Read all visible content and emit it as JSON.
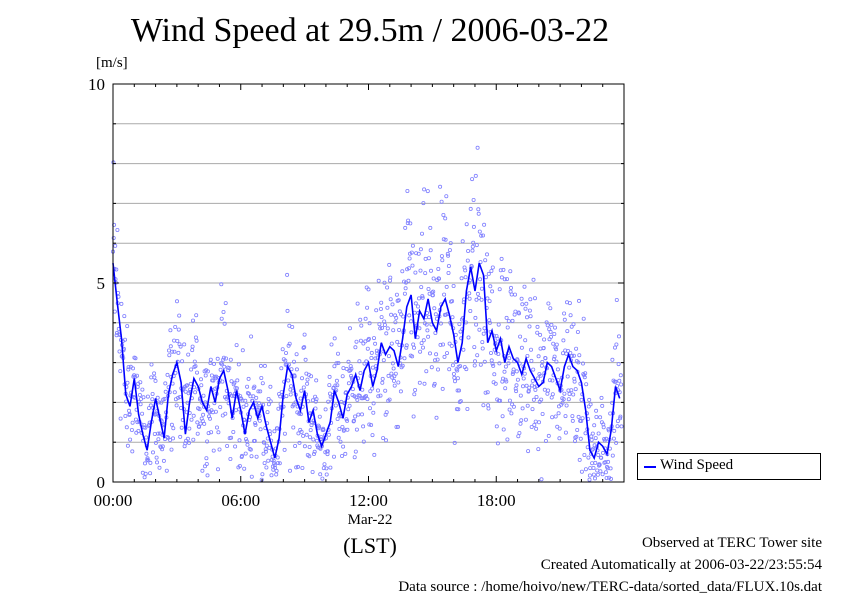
{
  "page": {
    "title": "Wind Speed at 29.5m / 2006-03-22",
    "unit_label": "[m/s]",
    "date_label": "Mar-22",
    "timezone_label": "(LST)",
    "footer": {
      "site": "Observed at TERC Tower site",
      "created": "Created Automatically at 2006-03-22/23:55:54",
      "source": "Data source : /home/hoivo/new/TERC-data/sorted_data/FLUX.10s.dat"
    }
  },
  "colors": {
    "series": "#0000ff",
    "points": "#8080ff",
    "grid": "#aaaaaa"
  },
  "chart_data": {
    "type": "line",
    "title": "Wind Speed at 29.5m / 2006-03-22",
    "xlabel": "(LST)",
    "ylabel": "[m/s]",
    "xlim": [
      0,
      24
    ],
    "ylim": [
      0,
      10
    ],
    "x_ticks": [
      0,
      6,
      12,
      18
    ],
    "x_tick_labels": [
      "00:00",
      "06:00",
      "12:00",
      "18:00"
    ],
    "y_ticks": [
      0,
      5,
      10
    ],
    "y_tick_labels": [
      "0",
      "5",
      "10"
    ],
    "grid": true,
    "legend": {
      "placement": "right-bottom",
      "entries": [
        "Wind Speed"
      ]
    },
    "series": [
      {
        "name": "Wind Speed",
        "style": "line with scatter of raw 10s samples",
        "x": [
          0.0,
          0.2,
          0.4,
          0.6,
          0.8,
          1.0,
          1.2,
          1.4,
          1.6,
          1.8,
          2.0,
          2.2,
          2.4,
          2.6,
          2.8,
          3.0,
          3.2,
          3.4,
          3.6,
          3.8,
          4.0,
          4.2,
          4.4,
          4.6,
          4.8,
          5.0,
          5.2,
          5.4,
          5.6,
          5.8,
          6.0,
          6.2,
          6.4,
          6.6,
          6.8,
          7.0,
          7.2,
          7.4,
          7.6,
          7.8,
          8.0,
          8.2,
          8.4,
          8.6,
          8.8,
          9.0,
          9.2,
          9.4,
          9.6,
          9.8,
          10.0,
          10.2,
          10.4,
          10.6,
          10.8,
          11.0,
          11.2,
          11.4,
          11.6,
          11.8,
          12.0,
          12.2,
          12.4,
          12.6,
          12.8,
          13.0,
          13.2,
          13.4,
          13.6,
          13.8,
          14.0,
          14.2,
          14.4,
          14.6,
          14.8,
          15.0,
          15.2,
          15.4,
          15.6,
          15.8,
          16.0,
          16.2,
          16.4,
          16.6,
          16.8,
          17.0,
          17.2,
          17.4,
          17.6,
          17.8,
          18.0,
          18.2,
          18.4,
          18.6,
          18.8,
          19.0,
          19.2,
          19.4,
          19.6,
          19.8,
          20.0,
          20.2,
          20.4,
          20.6,
          20.8,
          21.0,
          21.2,
          21.4,
          21.6,
          21.8,
          22.0,
          22.2,
          22.4,
          22.6,
          22.8,
          23.0,
          23.2,
          23.4,
          23.6,
          23.8
        ],
        "values": [
          5.5,
          4.5,
          3.6,
          2.2,
          1.9,
          2.6,
          1.7,
          1.2,
          0.8,
          1.5,
          2.1,
          1.6,
          1.1,
          2.2,
          2.7,
          3.0,
          2.5,
          1.2,
          2.0,
          2.6,
          2.4,
          2.0,
          1.8,
          2.4,
          2.0,
          2.6,
          2.8,
          2.3,
          1.6,
          2.3,
          1.8,
          1.2,
          1.8,
          2.0,
          1.6,
          1.9,
          1.4,
          1.0,
          0.6,
          1.1,
          2.2,
          2.9,
          2.7,
          2.1,
          1.8,
          2.3,
          1.5,
          1.8,
          1.2,
          0.9,
          1.2,
          1.5,
          2.3,
          2.0,
          1.6,
          2.2,
          2.4,
          2.7,
          2.3,
          2.8,
          3.0,
          2.4,
          2.8,
          3.5,
          3.2,
          3.4,
          3.3,
          2.9,
          3.6,
          4.4,
          4.7,
          3.6,
          4.3,
          4.1,
          4.6,
          4.0,
          3.8,
          4.4,
          4.6,
          4.2,
          3.7,
          3.0,
          3.5,
          4.8,
          5.4,
          4.8,
          5.5,
          5.2,
          3.5,
          3.8,
          3.3,
          3.6,
          3.0,
          3.4,
          3.1,
          3.0,
          2.7,
          3.1,
          2.8,
          2.6,
          2.4,
          2.5,
          3.0,
          2.9,
          2.6,
          2.3,
          2.9,
          3.2,
          2.9,
          2.8,
          2.5,
          1.8,
          0.8,
          0.6,
          1.0,
          0.9,
          0.7,
          1.3,
          2.4,
          2.1
        ]
      }
    ]
  }
}
